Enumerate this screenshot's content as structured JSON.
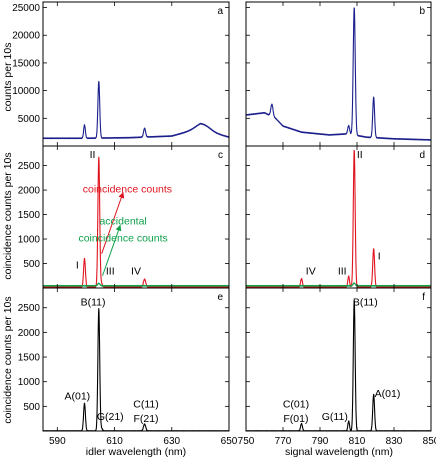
{
  "colors": {
    "singles": "#1a1f8c",
    "coincidence": "#e0141e",
    "accidental": "#10a04a",
    "corrected": "#000000"
  },
  "labels": {
    "ylabel_top": "counts per 10s",
    "ylabel_mid": "coincidence counts per 10s",
    "ylabel_bot": "coincidence counts per 10s",
    "xlabel_left": "idler wavelength (nm)",
    "xlabel_right": "signal wavelength (nm)"
  },
  "chart_data": [
    {
      "id": "a",
      "panel_label": "a",
      "type": "line",
      "xlim": [
        585,
        650
      ],
      "ylim": [
        0,
        26000
      ],
      "xticks": [
        590,
        610,
        630,
        650
      ],
      "show_xtick_labels": false,
      "yticks": [
        5000,
        10000,
        15000,
        20000,
        25000
      ],
      "yticklabels": [
        "5000",
        "10000",
        "15000",
        "20000",
        "25000"
      ],
      "series": [
        {
          "color_key": "singles",
          "base": [
            [
              585,
              1400
            ],
            [
              600,
              1400
            ],
            [
              615,
              1500
            ],
            [
              630,
              1800
            ],
            [
              640,
              3200
            ],
            [
              645,
              2300
            ],
            [
              650,
              1600
            ]
          ],
          "peaks": [
            [
              599.5,
              2400,
              0.3
            ],
            [
              604.5,
              10200,
              0.32
            ],
            [
              620.5,
              1600,
              0.35
            ],
            [
              641,
              900,
              2.5
            ]
          ]
        }
      ],
      "annotations": []
    },
    {
      "id": "b",
      "panel_label": "b",
      "type": "line",
      "xlim": [
        750,
        850
      ],
      "ylim": [
        0,
        26000
      ],
      "xticks": [
        750,
        770,
        790,
        810,
        830,
        850
      ],
      "show_xtick_labels": false,
      "yticks": [
        5000,
        10000,
        15000,
        20000,
        25000
      ],
      "yticklabels": [],
      "series": [
        {
          "color_key": "singles",
          "base": [
            [
              750,
              5600
            ],
            [
              760,
              6000
            ],
            [
              766,
              5000
            ],
            [
              770,
              3600
            ],
            [
              780,
              2500
            ],
            [
              795,
              2000
            ],
            [
              805,
              2200
            ],
            [
              815,
              1600
            ],
            [
              830,
              1300
            ],
            [
              850,
              1100
            ]
          ],
          "peaks": [
            [
              764,
              2200,
              0.6
            ],
            [
              805.5,
              1500,
              0.5
            ],
            [
              808.5,
              23000,
              0.55
            ],
            [
              819,
              7300,
              0.5
            ]
          ]
        }
      ],
      "annotations": []
    },
    {
      "id": "c",
      "panel_label": "c",
      "type": "line",
      "xlim": [
        585,
        650
      ],
      "ylim": [
        0,
        2900
      ],
      "xticks": [
        590,
        610,
        630,
        650
      ],
      "show_xtick_labels": false,
      "yticks": [
        500,
        1000,
        1500,
        2000,
        2500
      ],
      "yticklabels": [
        "500",
        "1000",
        "1500",
        "2000",
        "2500"
      ],
      "series": [
        {
          "color_key": "coincidence",
          "base": [
            [
              585,
              20
            ],
            [
              650,
              20
            ]
          ],
          "peaks": [
            [
              599.5,
              580,
              0.32
            ],
            [
              604.5,
              2650,
              0.32
            ],
            [
              605.5,
              70,
              0.3
            ],
            [
              620.5,
              160,
              0.4
            ]
          ]
        },
        {
          "color_key": "accidental",
          "base": [
            [
              585,
              45
            ],
            [
              650,
              45
            ]
          ],
          "peaks": [
            [
              604.5,
              50,
              0.4
            ]
          ]
        }
      ],
      "annotations": [
        {
          "text": "I",
          "x": 597,
          "y": 400,
          "color_key": "corrected"
        },
        {
          "text": "II",
          "x": 602.3,
          "y": 2650,
          "color_key": "corrected"
        },
        {
          "text": "III",
          "x": 608.5,
          "y": 280,
          "color_key": "corrected"
        },
        {
          "text": "IV",
          "x": 617.5,
          "y": 280,
          "color_key": "corrected"
        },
        {
          "text": "coincidence counts",
          "x": 614.5,
          "y": 1950,
          "color_key": "coincidence"
        },
        {
          "text": "accidental",
          "x": 613,
          "y": 1300,
          "color_key": "accidental"
        },
        {
          "text": "coincidence counts",
          "x": 613,
          "y": 950,
          "color_key": "accidental"
        }
      ],
      "arrows": [
        {
          "from": [
            605.5,
            700
          ],
          "to": [
            613,
            1950
          ],
          "color_key": "coincidence"
        },
        {
          "from": [
            605.8,
            250
          ],
          "to": [
            612,
            1280
          ],
          "color_key": "accidental"
        }
      ]
    },
    {
      "id": "d",
      "panel_label": "d",
      "type": "line",
      "xlim": [
        750,
        850
      ],
      "ylim": [
        0,
        2900
      ],
      "xticks": [
        750,
        770,
        790,
        810,
        830,
        850
      ],
      "show_xtick_labels": false,
      "yticks": [
        500,
        1000,
        1500,
        2000,
        2500
      ],
      "yticklabels": [],
      "series": [
        {
          "color_key": "coincidence",
          "base": [
            [
              750,
              20
            ],
            [
              850,
              20
            ]
          ],
          "peaks": [
            [
              780,
              170,
              0.5
            ],
            [
              805.5,
              220,
              0.45
            ],
            [
              808.5,
              2800,
              0.5
            ],
            [
              819,
              780,
              0.5
            ]
          ]
        },
        {
          "color_key": "accidental",
          "base": [
            [
              750,
              45
            ],
            [
              850,
              45
            ]
          ],
          "peaks": [
            [
              808.5,
              55,
              0.6
            ]
          ]
        }
      ],
      "annotations": [
        {
          "text": "IV",
          "x": 785,
          "y": 280,
          "color_key": "corrected"
        },
        {
          "text": "III",
          "x": 802,
          "y": 280,
          "color_key": "corrected"
        },
        {
          "text": "II",
          "x": 811.5,
          "y": 2650,
          "color_key": "corrected"
        },
        {
          "text": "I",
          "x": 822,
          "y": 580,
          "color_key": "corrected"
        }
      ],
      "arrows": []
    },
    {
      "id": "e",
      "panel_label": "e",
      "type": "line",
      "xlim": [
        585,
        650
      ],
      "ylim": [
        0,
        2900
      ],
      "xticks": [
        590,
        610,
        630,
        650
      ],
      "xticklabels": [
        "590",
        "610",
        "630",
        "650"
      ],
      "show_xtick_labels": true,
      "yticks": [
        500,
        1000,
        1500,
        2000,
        2500
      ],
      "yticklabels": [
        "500",
        "1000",
        "1500",
        "2000",
        "2500"
      ],
      "series": [
        {
          "color_key": "corrected",
          "base": [
            [
              585,
              0
            ],
            [
              650,
              0
            ]
          ],
          "peaks": [
            [
              599.5,
              560,
              0.32
            ],
            [
              604.5,
              2480,
              0.32
            ],
            [
              605.5,
              50,
              0.3
            ],
            [
              620.5,
              140,
              0.4
            ]
          ]
        }
      ],
      "annotations": [
        {
          "text": "A(01)",
          "x": 597,
          "y": 640,
          "color_key": "corrected"
        },
        {
          "text": "B(11)",
          "x": 602.5,
          "y": 2550,
          "color_key": "corrected"
        },
        {
          "text": "G(21)",
          "x": 608.5,
          "y": 220,
          "color_key": "corrected"
        },
        {
          "text": "C(11)",
          "x": 621,
          "y": 480,
          "color_key": "corrected"
        },
        {
          "text": "F(21)",
          "x": 621,
          "y": 180,
          "color_key": "corrected"
        }
      ],
      "arrows": []
    },
    {
      "id": "f",
      "panel_label": "f",
      "type": "line",
      "xlim": [
        750,
        850
      ],
      "ylim": [
        0,
        2900
      ],
      "xticks": [
        750,
        770,
        790,
        810,
        830,
        850
      ],
      "xticklabels": [
        "750",
        "770",
        "790",
        "810",
        "830",
        "850"
      ],
      "show_xtick_labels": true,
      "yticks": [
        500,
        1000,
        1500,
        2000,
        2500
      ],
      "yticklabels": [],
      "series": [
        {
          "color_key": "corrected",
          "base": [
            [
              750,
              0
            ],
            [
              850,
              0
            ]
          ],
          "peaks": [
            [
              780,
              150,
              0.5
            ],
            [
              805.5,
              200,
              0.45
            ],
            [
              808.5,
              2650,
              0.5
            ],
            [
              819,
              740,
              0.5
            ]
          ]
        }
      ],
      "annotations": [
        {
          "text": "C(01)",
          "x": 777,
          "y": 480,
          "color_key": "corrected"
        },
        {
          "text": "F(01)",
          "x": 777,
          "y": 180,
          "color_key": "corrected"
        },
        {
          "text": "G(11)",
          "x": 798,
          "y": 220,
          "color_key": "corrected"
        },
        {
          "text": "B(11)",
          "x": 814.5,
          "y": 2550,
          "color_key": "corrected"
        },
        {
          "text": "A(01)",
          "x": 826.5,
          "y": 690,
          "color_key": "corrected"
        }
      ],
      "arrows": []
    }
  ]
}
